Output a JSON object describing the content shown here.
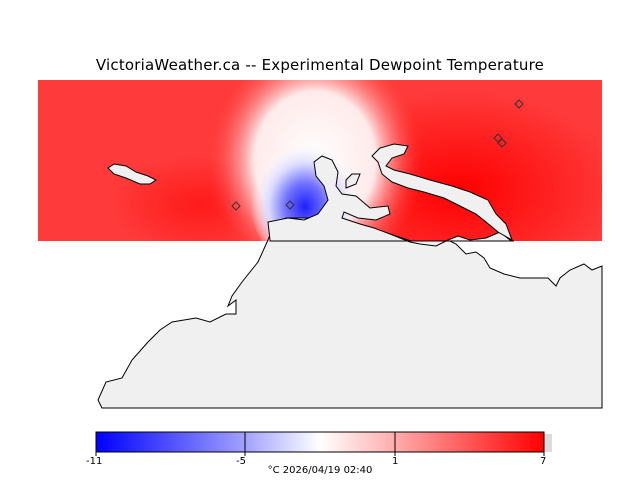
{
  "title": "VictoriaWeather.ca -- Experimental Dewpoint Temperature",
  "colors": {
    "warm": "#ff0000",
    "cold": "#0000ff",
    "land": "#f0f0f0",
    "neutral": "#ffffff"
  },
  "colorbar": {
    "ticks": [
      "-11",
      "-5",
      "1",
      "7"
    ],
    "min": -11,
    "max": 7
  },
  "caption": "°C  2026/04/19 02:40",
  "stations": [
    {
      "icon": "diamond-marker"
    },
    {
      "icon": "diamond-marker"
    },
    {
      "icon": "diamond-marker"
    },
    {
      "icon": "diamond-marker"
    },
    {
      "icon": "diamond-marker"
    }
  ]
}
